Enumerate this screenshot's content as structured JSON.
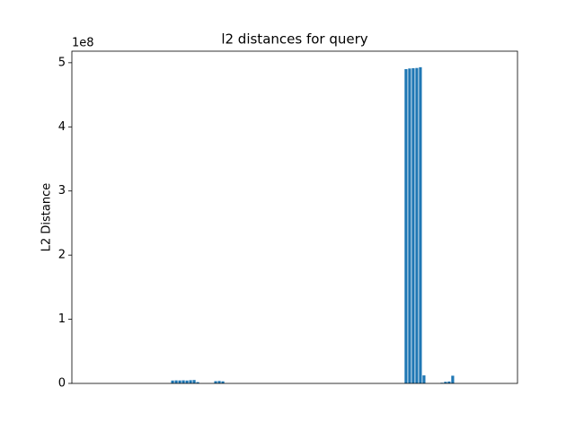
{
  "chart_data": {
    "type": "bar",
    "title": "l2 distances for query",
    "y_label": "L2 Distance",
    "y_offset_label": "1e8",
    "categories": [
      null,
      null,
      null,
      null,
      null,
      null,
      null,
      null,
      null,
      null,
      null,
      null,
      null,
      null,
      null,
      null,
      null,
      null,
      null,
      null,
      null,
      null,
      null,
      null,
      null,
      null,
      null,
      null,
      null,
      null,
      null,
      null,
      null,
      null,
      null,
      null,
      null,
      null,
      null,
      null,
      null,
      null,
      null,
      null,
      null,
      null,
      null,
      null,
      null,
      null,
      null,
      null,
      null,
      null,
      null,
      null,
      null,
      null,
      null,
      null,
      null,
      null,
      null,
      null,
      null,
      null,
      null,
      null,
      null,
      null,
      null,
      null,
      null,
      null,
      null,
      null,
      null,
      null,
      null,
      null,
      null,
      null,
      null,
      null,
      null,
      null,
      null,
      null,
      null,
      null,
      null,
      null,
      null,
      null,
      null,
      null,
      null,
      null,
      null,
      null,
      null,
      null,
      null,
      null,
      null,
      null,
      null,
      null,
      null,
      null,
      null,
      null,
      null
    ],
    "values": [
      0,
      0,
      0,
      0,
      0,
      0,
      0,
      0,
      0,
      0,
      0,
      0,
      0,
      0,
      0,
      0,
      0,
      0,
      0,
      0,
      0,
      0,
      4500000,
      4700000,
      4600000,
      4800000,
      4500000,
      5000000,
      5300000,
      2000000,
      0,
      0,
      0,
      0,
      3500000,
      3800000,
      3200000,
      0,
      0,
      0,
      0,
      0,
      0,
      0,
      0,
      0,
      0,
      0,
      0,
      0,
      0,
      0,
      0,
      0,
      0,
      0,
      0,
      0,
      0,
      0,
      0,
      0,
      0,
      0,
      0,
      0,
      0,
      0,
      0,
      0,
      0,
      0,
      0,
      0,
      0,
      0,
      0,
      0,
      0,
      0,
      0,
      0,
      0,
      0,
      0,
      0,
      0,
      490000000,
      491000000,
      491500000,
      491800000,
      493000000,
      12500000,
      0,
      0,
      0,
      0,
      1000000,
      2500000,
      3000000,
      12000000,
      0,
      0,
      0,
      0,
      0,
      0,
      0,
      0,
      0,
      0,
      0,
      0
    ],
    "color": "#1f77b4",
    "ylim": [
      0,
      518000000
    ],
    "yticks": [
      0,
      {
        "value": 100000000,
        "label": "1"
      },
      {
        "value": 200000000,
        "label": "2"
      },
      {
        "value": 300000000,
        "label": "3"
      },
      {
        "value": 400000000,
        "label": "4"
      },
      {
        "value": 500000000,
        "label": "5"
      }
    ],
    "grid": false
  }
}
